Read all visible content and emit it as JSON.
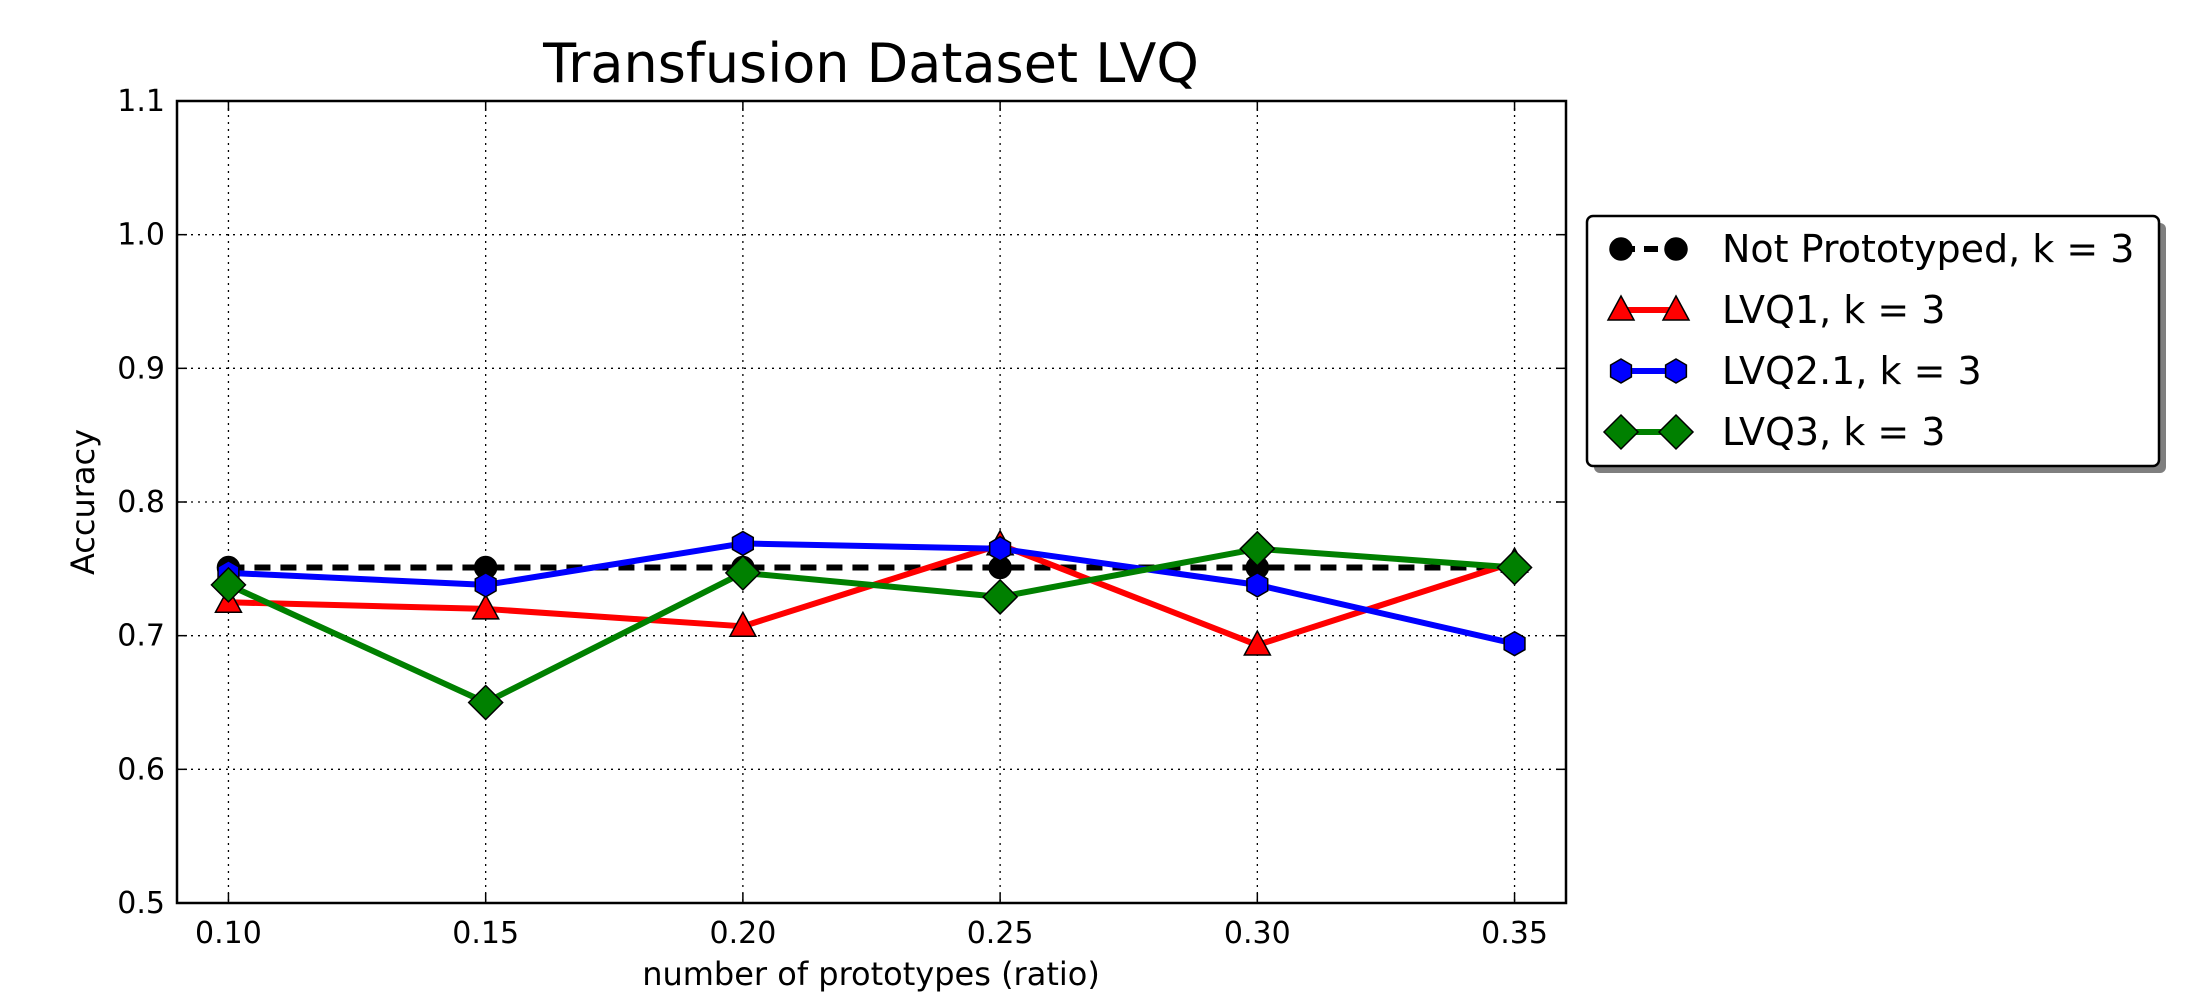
{
  "chart_data": {
    "type": "line",
    "title": "Transfusion Dataset LVQ",
    "xlabel": "number of prototypes (ratio)",
    "ylabel": "Accuracy",
    "xlim": [
      0.09,
      0.36
    ],
    "ylim": [
      0.5,
      1.1
    ],
    "xticks": [
      0.1,
      0.15,
      0.2,
      0.25,
      0.3,
      0.35
    ],
    "xtick_labels": [
      "0.10",
      "0.15",
      "0.20",
      "0.25",
      "0.30",
      "0.35"
    ],
    "yticks": [
      0.5,
      0.6,
      0.7,
      0.8,
      0.9,
      1.0,
      1.1
    ],
    "ytick_labels": [
      "0.5",
      "0.6",
      "0.7",
      "0.8",
      "0.9",
      "1.0",
      "1.1"
    ],
    "grid": true,
    "legend_position": "right, outside plot",
    "x": [
      0.1,
      0.15,
      0.2,
      0.25,
      0.3,
      0.35
    ],
    "series": [
      {
        "name": "Not Prototyped, k = 3",
        "color": "#000000",
        "marker": "circle",
        "dashed": true,
        "values": [
          0.751,
          0.751,
          0.751,
          0.751,
          0.751,
          0.751
        ]
      },
      {
        "name": "LVQ1, k = 3",
        "color": "#ff0000",
        "marker": "triangle",
        "dashed": false,
        "values": [
          0.725,
          0.72,
          0.707,
          0.768,
          0.693,
          0.755
        ]
      },
      {
        "name": "LVQ2.1, k = 3",
        "color": "#0000ff",
        "marker": "hexagon",
        "dashed": false,
        "values": [
          0.747,
          0.738,
          0.769,
          0.765,
          0.738,
          0.694
        ]
      },
      {
        "name": "LVQ3, k = 3",
        "color": "#008000",
        "marker": "diamond",
        "dashed": false,
        "values": [
          0.738,
          0.65,
          0.747,
          0.729,
          0.765,
          0.751
        ]
      }
    ]
  }
}
